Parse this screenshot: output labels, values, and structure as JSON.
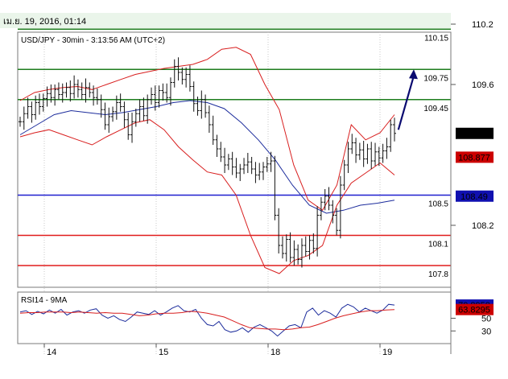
{
  "header": {
    "date_text": "เม.ย. 19, 2016, 01:14"
  },
  "chart_data": [
    {
      "type": "line",
      "title": "USD/JPY - 30min - 3:13:56 AM (UTC+2)",
      "price_axis_ticks": [
        "110.2",
        "109.6",
        "108.2"
      ],
      "date_ticks": [
        "14",
        "15",
        "18",
        "19"
      ],
      "ylim": [
        107.6,
        110.2
      ],
      "series": [
        {
          "name": "price",
          "values": [
            109.23,
            109.31,
            109.38,
            109.3,
            109.42,
            109.38,
            109.46,
            109.51,
            109.47,
            109.55,
            109.5,
            109.52,
            109.57,
            109.51,
            109.6,
            109.55,
            109.5,
            109.57,
            109.52,
            109.47,
            109.45,
            109.35,
            109.2,
            109.28,
            109.33,
            109.42,
            109.38,
            109.25,
            109.1,
            109.23,
            109.31,
            109.38,
            109.29,
            109.45,
            109.5,
            109.42,
            109.54,
            109.52,
            109.47,
            109.62,
            109.78,
            109.72,
            109.65,
            109.7,
            109.58,
            109.41,
            109.34,
            109.45,
            109.32,
            109.2,
            109.05,
            108.96,
            108.88,
            108.8,
            108.86,
            108.78,
            108.72,
            108.76,
            108.8,
            108.83,
            108.76,
            108.7,
            108.73,
            108.78,
            108.81,
            108.84,
            108.3,
            108.0,
            107.92,
            108.06,
            107.88,
            107.96,
            107.86,
            108.0,
            107.94,
            108.05,
            107.97,
            108.3,
            108.43,
            108.49,
            108.4,
            108.3,
            108.15,
            108.6,
            108.8,
            108.96,
            109.02,
            108.9,
            108.95,
            108.86,
            108.96,
            108.84,
            108.93,
            108.87,
            108.94,
            108.98,
            109.2,
            109.114
          ]
        },
        {
          "name": "bollinger-upper",
          "values": [
            109.44,
            109.52,
            109.55,
            109.57,
            109.58,
            109.55,
            109.6,
            109.65,
            109.7,
            109.73,
            109.76,
            109.78,
            109.8,
            109.85,
            109.95,
            109.97,
            109.9,
            109.6,
            109.35,
            108.8,
            108.45,
            108.35,
            108.6,
            109.2,
            109.05,
            109.12,
            109.3
          ]
        },
        {
          "name": "bollinger-lower",
          "values": [
            109.08,
            109.12,
            109.15,
            109.1,
            109.05,
            109.0,
            109.08,
            109.15,
            109.22,
            109.25,
            109.15,
            108.98,
            108.85,
            108.73,
            108.7,
            108.5,
            108.1,
            107.78,
            107.72,
            107.85,
            107.9,
            108.0,
            108.4,
            108.62,
            108.72,
            108.82,
            108.7
          ]
        },
        {
          "name": "moving-average",
          "values": [
            109.1,
            109.2,
            109.3,
            109.34,
            109.32,
            109.3,
            109.32,
            109.35,
            109.38,
            109.42,
            109.44,
            109.42,
            109.36,
            109.22,
            109.05,
            108.85,
            108.6,
            108.4,
            108.32,
            108.35,
            108.4,
            108.42,
            108.45
          ]
        }
      ],
      "lines": [
        {
          "value": 110.15,
          "label": "110.15",
          "color": "#1e7d1e"
        },
        {
          "value": 109.75,
          "label": "109.75",
          "color": "#1e7d1e"
        },
        {
          "value": 109.45,
          "label": "109.45",
          "color": "#1e7d1e"
        },
        {
          "value": 108.5,
          "label": "108.5",
          "color": "#1f1fcf"
        },
        {
          "value": 108.1,
          "label": "108.1",
          "color": "#e01b1b"
        },
        {
          "value": 107.8,
          "label": "107.8",
          "color": "#e01b1b"
        }
      ],
      "price_flags": [
        {
          "value": 109.114,
          "label": "109.114",
          "bg": "#000000",
          "fg": "#ffffff"
        },
        {
          "value": 108.877,
          "label": "108.877",
          "bg": "#cc0000",
          "fg": "#000000"
        },
        {
          "value": 108.49,
          "label": "108.49",
          "bg": "#1010b0",
          "fg": "#ffffff"
        }
      ],
      "arrow": {
        "from": [
          98,
          109.15
        ],
        "to": [
          102,
          109.75
        ],
        "color": "#0a0a70"
      }
    },
    {
      "type": "line",
      "title": "RSI14 - 9MA",
      "ylim": [
        10,
        85
      ],
      "y_ticks": [
        "50",
        "30"
      ],
      "series": [
        {
          "name": "rsi",
          "values": [
            60,
            62,
            56,
            61,
            57,
            63,
            58,
            64,
            55,
            60,
            62,
            58,
            63,
            65,
            55,
            50,
            54,
            48,
            45,
            52,
            60,
            58,
            56,
            62,
            55,
            60,
            66,
            70,
            62,
            60,
            64,
            50,
            40,
            38,
            45,
            32,
            28,
            30,
            35,
            28,
            36,
            40,
            35,
            30,
            22,
            30,
            38,
            40,
            35,
            60,
            66,
            55,
            62,
            58,
            52,
            66,
            72,
            68,
            60,
            66,
            62,
            58,
            63,
            72,
            70.8958
          ]
        },
        {
          "name": "rsi-ma",
          "values": [
            58,
            59,
            59,
            60,
            60,
            60,
            59,
            60,
            59,
            58,
            59,
            58,
            58,
            56,
            54,
            55,
            57,
            58,
            58,
            59,
            61,
            60,
            58,
            55,
            52,
            46,
            40,
            35,
            34,
            33,
            33,
            32,
            33,
            35,
            36,
            40,
            45,
            50,
            54,
            57,
            60,
            62,
            62,
            63,
            63.8295
          ]
        }
      ],
      "price_flags": [
        {
          "value": 70.8958,
          "label": "70.8958",
          "bg": "#1010b0",
          "fg": "#ffffff"
        },
        {
          "value": 63.8295,
          "label": "63.8295",
          "bg": "#cc0000",
          "fg": "#000000"
        }
      ]
    }
  ],
  "colors": {
    "price": "#111111",
    "bollinger": "#d81e1e",
    "moving_average": "#1c2c9c",
    "rsi": "#1c2c9c",
    "rsi_ma": "#d81e1e"
  }
}
